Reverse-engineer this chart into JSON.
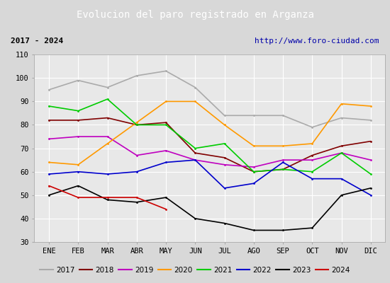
{
  "title": "Evolucion del paro registrado en Arganza",
  "title_color": "#ffffff",
  "title_bg": "#4472c4",
  "subtitle_left": "2017 - 2024",
  "subtitle_right": "http://www.foro-ciudad.com",
  "months": [
    "ENE",
    "FEB",
    "MAR",
    "ABR",
    "MAY",
    "JUN",
    "JUL",
    "AGO",
    "SEP",
    "OCT",
    "NOV",
    "DIC"
  ],
  "ylim": [
    30,
    110
  ],
  "yticks": [
    30,
    40,
    50,
    60,
    70,
    80,
    90,
    100,
    110
  ],
  "series": {
    "2017": {
      "color": "#aaaaaa",
      "data": [
        95,
        99,
        96,
        101,
        103,
        96,
        84,
        84,
        84,
        79,
        83,
        82
      ]
    },
    "2018": {
      "color": "#800000",
      "data": [
        82,
        82,
        83,
        80,
        81,
        68,
        66,
        60,
        61,
        67,
        71,
        73
      ]
    },
    "2019": {
      "color": "#bf00bf",
      "data": [
        74,
        75,
        75,
        67,
        69,
        65,
        63,
        62,
        65,
        65,
        68,
        65
      ]
    },
    "2020": {
      "color": "#ff9900",
      "data": [
        64,
        63,
        72,
        81,
        90,
        90,
        80,
        71,
        71,
        72,
        89,
        88
      ]
    },
    "2021": {
      "color": "#00cc00",
      "data": [
        88,
        86,
        91,
        80,
        80,
        70,
        72,
        60,
        61,
        60,
        68,
        59
      ]
    },
    "2022": {
      "color": "#0000cc",
      "data": [
        59,
        60,
        59,
        60,
        64,
        65,
        53,
        55,
        64,
        57,
        57,
        50
      ]
    },
    "2023": {
      "color": "#000000",
      "data": [
        50,
        54,
        48,
        47,
        49,
        40,
        38,
        35,
        35,
        36,
        50,
        53
      ]
    },
    "2024": {
      "color": "#cc0000",
      "data": [
        54,
        49,
        49,
        49,
        44,
        null,
        null,
        null,
        null,
        null,
        null,
        null
      ]
    }
  },
  "bg_color": "#d8d8d8",
  "plot_bg": "#e8e8e8",
  "grid_color": "#ffffff"
}
